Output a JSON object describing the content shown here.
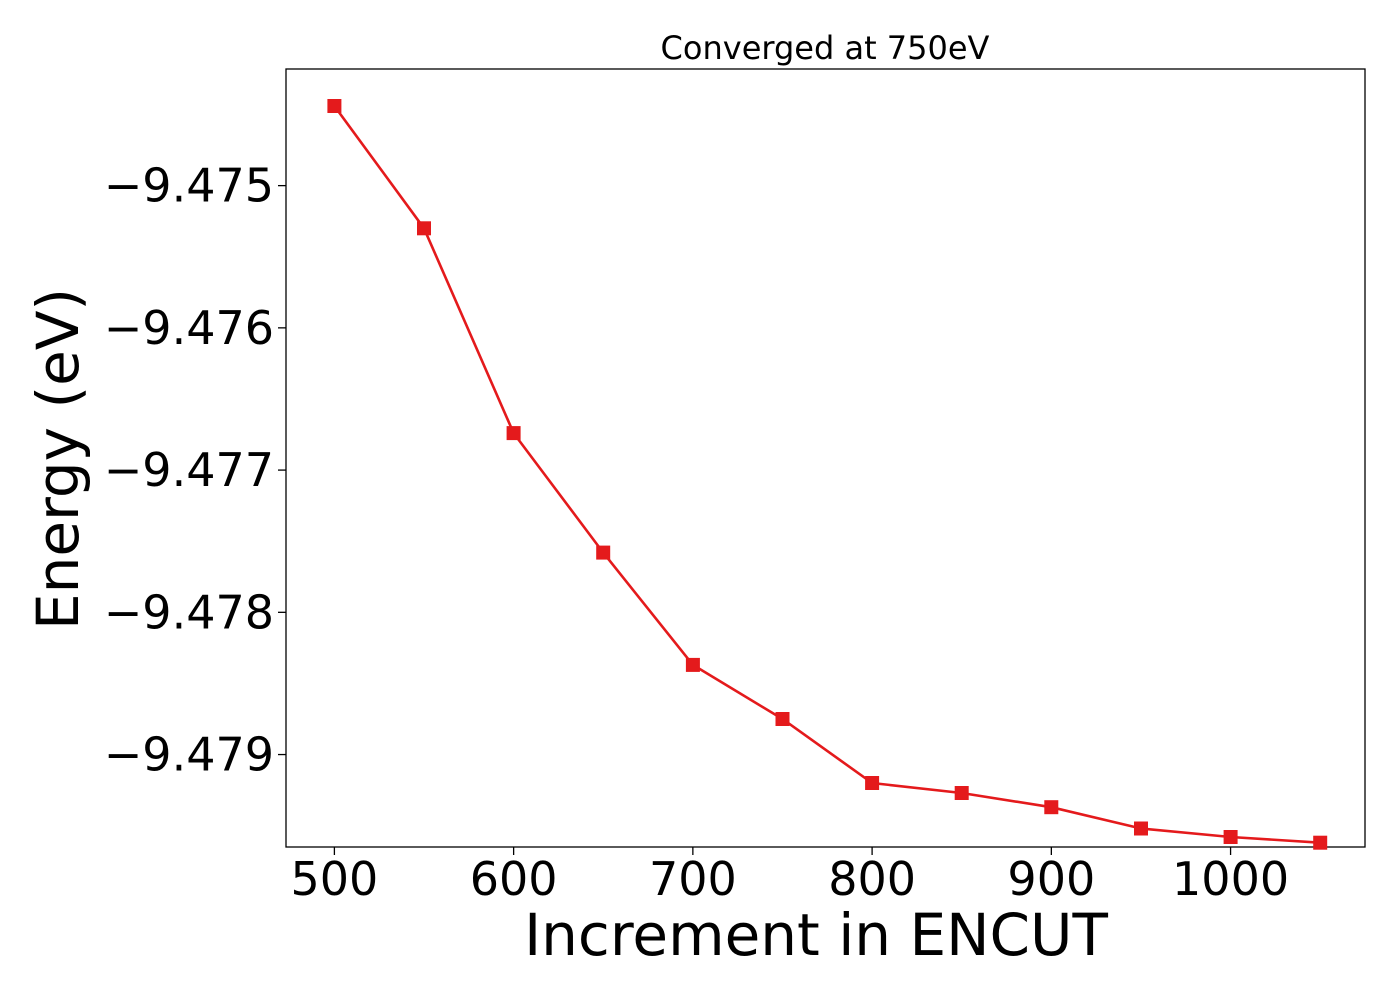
{
  "chart_data": {
    "type": "line",
    "title": "Converged at 750eV",
    "xlabel": "Increment in ENCUT",
    "ylabel": "Energy (eV)",
    "xlim": [
      473,
      1075
    ],
    "ylim": [
      -9.47965,
      -9.47418
    ],
    "grid": false,
    "legend": "none",
    "x_ticks": [
      {
        "value": 500,
        "label": "500"
      },
      {
        "value": 600,
        "label": "600"
      },
      {
        "value": 700,
        "label": "700"
      },
      {
        "value": 800,
        "label": "800"
      },
      {
        "value": 900,
        "label": "900"
      },
      {
        "value": 1000,
        "label": "1000"
      }
    ],
    "y_ticks": [
      {
        "value": -9.475,
        "label": "−9.475"
      },
      {
        "value": -9.476,
        "label": "−9.476"
      },
      {
        "value": -9.477,
        "label": "−9.477"
      },
      {
        "value": -9.478,
        "label": "−9.478"
      },
      {
        "value": -9.479,
        "label": "−9.479"
      }
    ],
    "series": [
      {
        "color": "#e41a1c",
        "marker": "square",
        "x": [
          500,
          550,
          600,
          650,
          700,
          750,
          800,
          850,
          900,
          950,
          1000,
          1050
        ],
        "y": [
          -9.47444,
          -9.4753,
          -9.47674,
          -9.47758,
          -9.47837,
          -9.47875,
          -9.4792,
          -9.47927,
          -9.47937,
          -9.47952,
          -9.47958,
          -9.47962
        ]
      }
    ]
  }
}
